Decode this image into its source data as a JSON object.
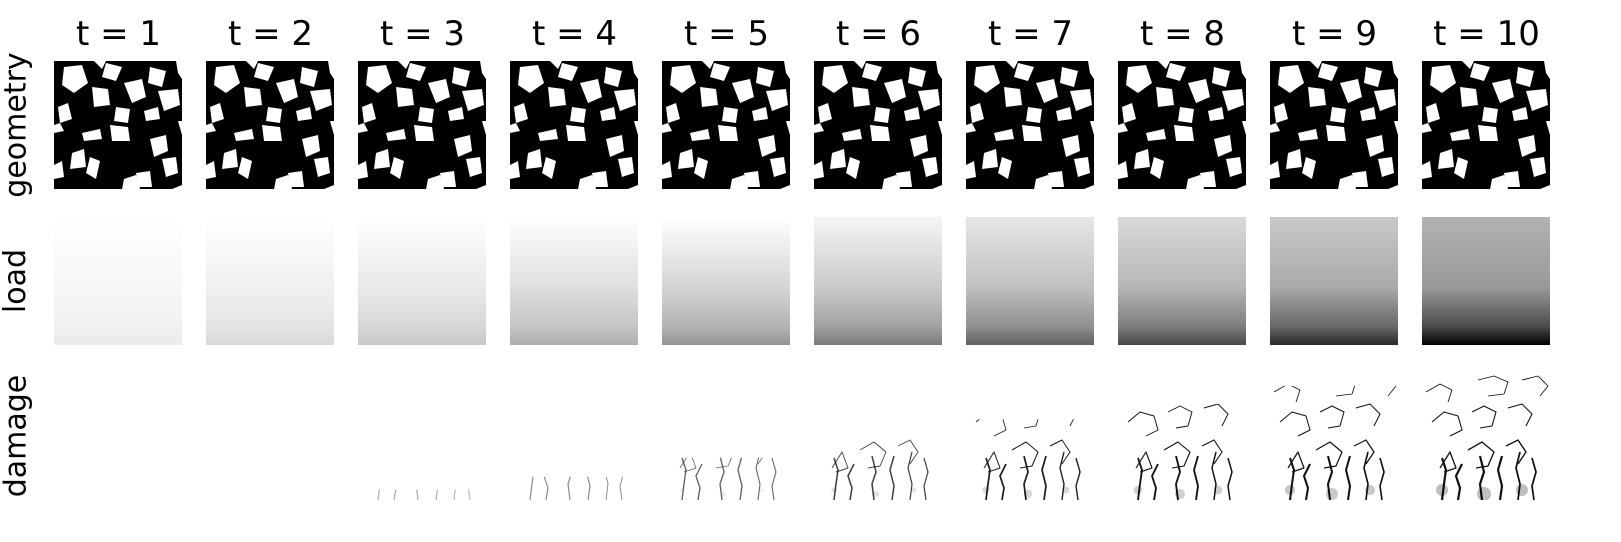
{
  "figure": {
    "columns": [
      "t = 1",
      "t = 2",
      "t = 3",
      "t = 4",
      "t = 5",
      "t = 6",
      "t = 7",
      "t = 8",
      "t = 9",
      "t = 10"
    ],
    "rows": [
      {
        "key": "geometry",
        "label": "geometry"
      },
      {
        "key": "load",
        "label": "load"
      },
      {
        "key": "damage",
        "label": "damage"
      }
    ],
    "load_intensity": [
      0.08,
      0.15,
      0.22,
      0.32,
      0.42,
      0.52,
      0.62,
      0.72,
      0.84,
      1.0
    ],
    "damage_intensity": [
      0.0,
      0.0,
      0.05,
      0.15,
      0.3,
      0.45,
      0.6,
      0.72,
      0.86,
      1.0
    ],
    "colors": {
      "solid": "#000000",
      "void": "#ffffff",
      "load_max": "#000000",
      "crack": "#111111"
    }
  }
}
